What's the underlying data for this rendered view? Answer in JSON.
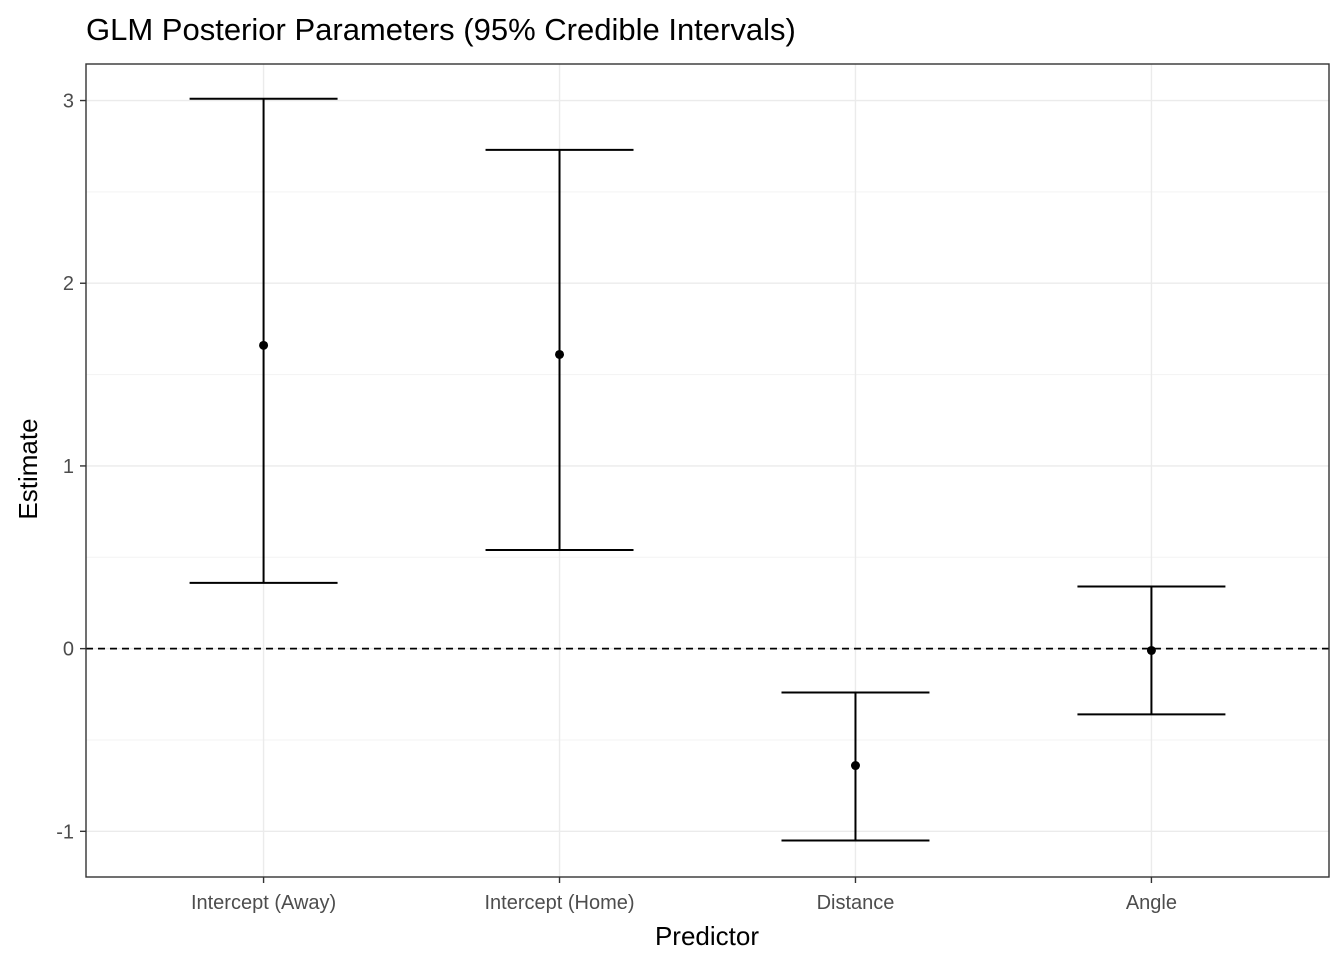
{
  "chart_data": {
    "type": "errorbar",
    "title": "GLM Posterior Parameters (95% Credible Intervals)",
    "xlabel": "Predictor",
    "ylabel": "Estimate",
    "categories": [
      "Intercept (Away)",
      "Intercept (Home)",
      "Distance",
      "Angle"
    ],
    "estimates": [
      1.66,
      1.61,
      -0.64,
      -0.01
    ],
    "lower": [
      0.36,
      0.54,
      -1.05,
      -0.36
    ],
    "upper": [
      3.01,
      2.73,
      -0.24,
      0.34
    ],
    "yticks": [
      -1,
      0,
      1,
      2,
      3
    ],
    "ylim": [
      -1.25,
      3.2
    ],
    "reference_line": 0,
    "grid": true,
    "colors": {
      "marks": "#000000",
      "grid": "#ebebeb",
      "tick_text": "#4d4d4d"
    }
  }
}
